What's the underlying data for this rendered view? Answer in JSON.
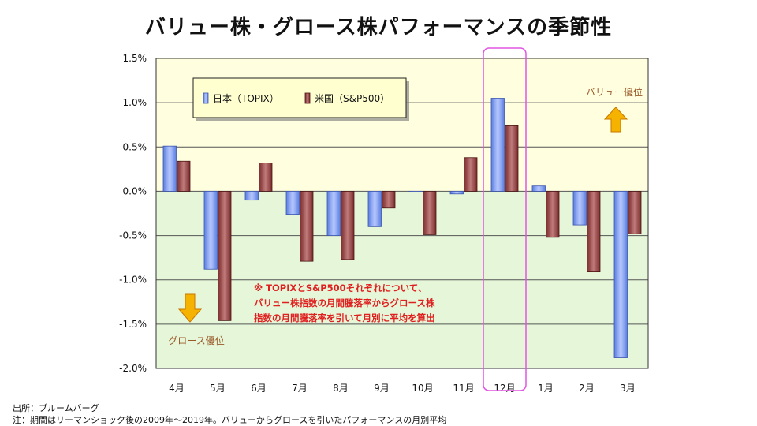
{
  "page": {
    "title": "バリュー株・グロース株パフォーマンスの季節性",
    "source_note": "出所：ブルームバーグ",
    "period_note": "注：期間はリーマンショック後の2009年～2019年。バリューからグロースを引いたパフォーマンスの月別平均"
  },
  "chart_data": {
    "type": "bar",
    "title": "バリュー株・グロース株パフォーマンスの季節性",
    "xlabel": "",
    "ylabel": "",
    "categories": [
      "4月",
      "5月",
      "6月",
      "7月",
      "8月",
      "9月",
      "10月",
      "11月",
      "12月",
      "1月",
      "2月",
      "3月"
    ],
    "series": [
      {
        "name": "日本（TOPIX）",
        "color": "#6a8fe8",
        "values": [
          0.51,
          -0.88,
          -0.1,
          -0.26,
          -0.5,
          -0.4,
          -0.01,
          -0.03,
          1.05,
          0.06,
          -0.38,
          -1.88
        ]
      },
      {
        "name": "米国（S&P500）",
        "color": "#8e3a3a",
        "values": [
          0.34,
          -1.46,
          0.32,
          -0.79,
          -0.77,
          -0.19,
          -0.49,
          0.38,
          0.74,
          -0.52,
          -0.91,
          -0.48
        ]
      }
    ],
    "ylim": [
      -2.0,
      1.5
    ],
    "yticks": [
      1.5,
      1.0,
      0.5,
      0.0,
      -0.5,
      -1.0,
      -1.5,
      -2.0
    ],
    "ytick_labels": [
      "1.5%",
      "1.0%",
      "0.5%",
      "0.0%",
      "-0.5%",
      "-1.0%",
      "-1.5%",
      "-2.0%"
    ],
    "highlight_category": "12月",
    "legend_position": "top-left",
    "annotations": {
      "value_label": "バリュー優位",
      "growth_label": "グロース優位",
      "note_lines": [
        "※ TOPIXとS&P500それぞれについて、",
        "バリュー株指数の月間騰落率からグロース株",
        "指数の月間騰落率を引いて月別に平均を算出"
      ]
    },
    "colors": {
      "positive_bg": "#ffffe0",
      "negative_bg": "#e6f7d9",
      "gridline": "#555555",
      "highlight_box": "#e255e2",
      "arrow_fill": "#f5b300",
      "arrow_stroke": "#c77700",
      "annotation_text": "#9a5a2a",
      "note_text": "#e02020",
      "legend_bg": "#ffffd0"
    }
  }
}
